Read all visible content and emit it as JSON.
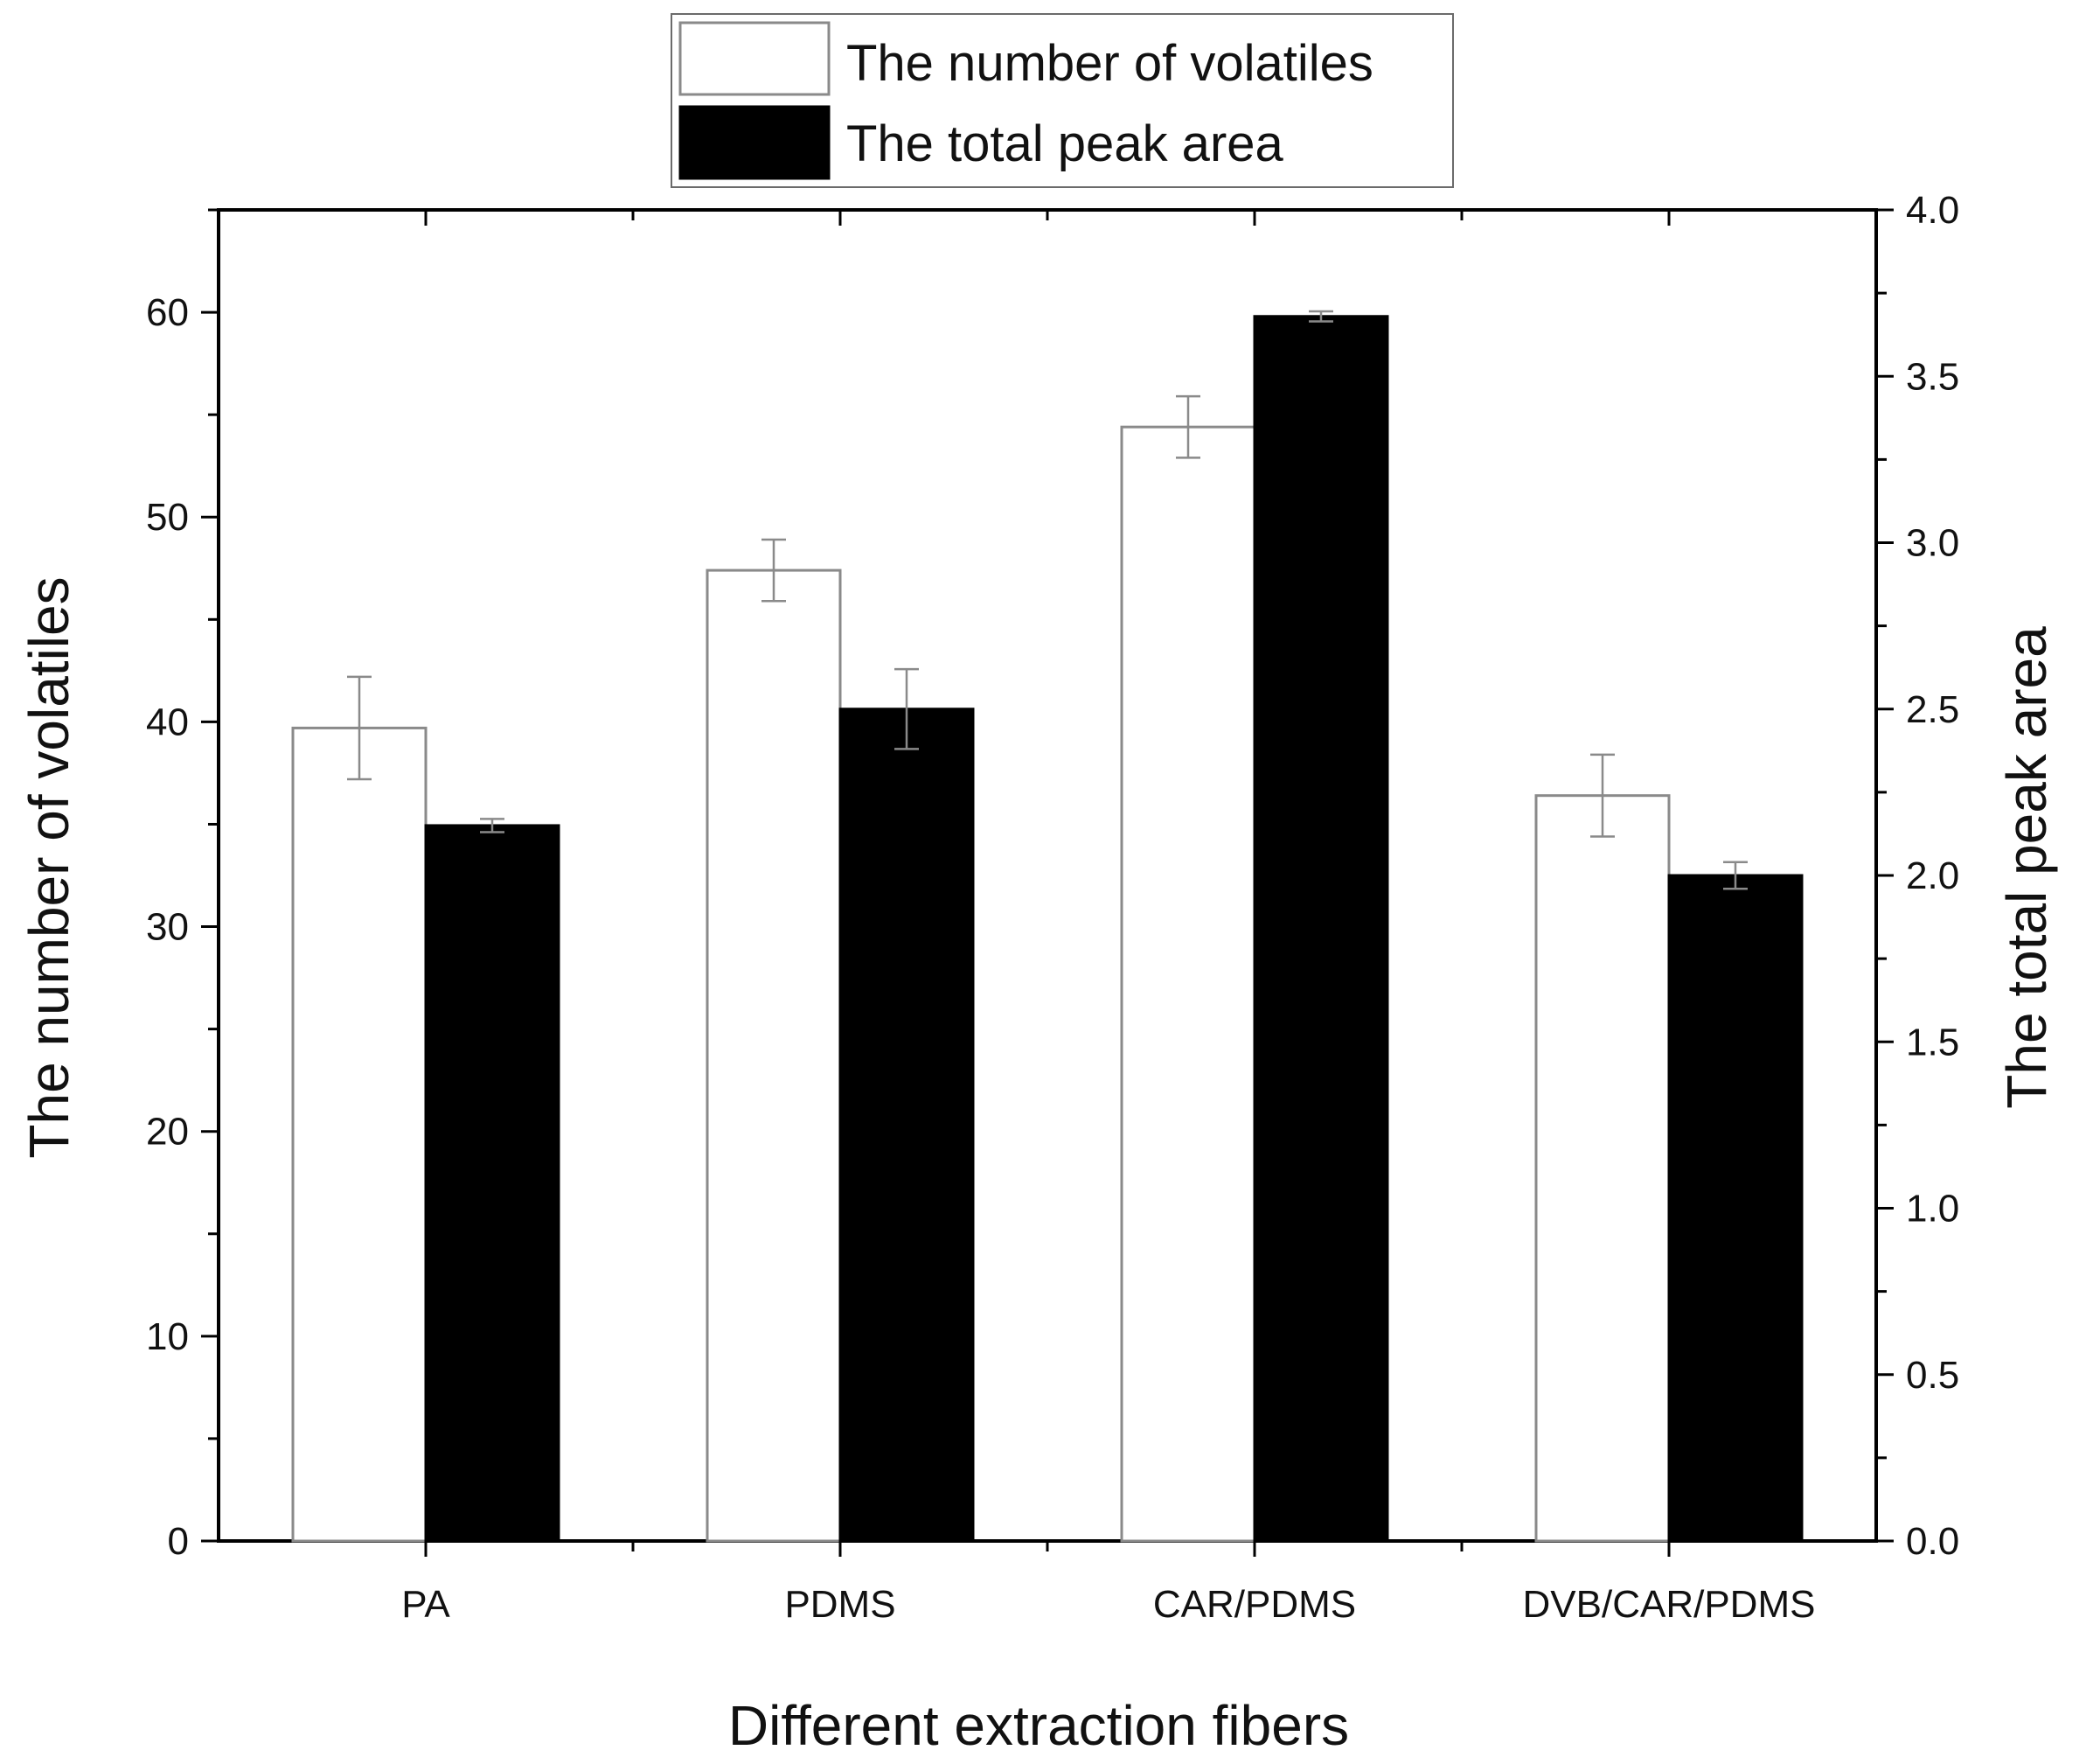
{
  "chart_data": {
    "type": "bar",
    "categories": [
      "PA",
      "PDMS",
      "CAR/PDMS",
      "DVB/CAR/PDMS"
    ],
    "series": [
      {
        "name": "The number of volatiles",
        "axis": "left",
        "fill": "#ffffff",
        "stroke": "#8a8a8a",
        "values": [
          39.7,
          47.4,
          54.4,
          36.4
        ],
        "errors": [
          2.5,
          1.5,
          1.5,
          2.0
        ]
      },
      {
        "name": "The total peak area",
        "axis": "right",
        "fill": "#000000",
        "stroke": "#000000",
        "values": [
          2.15,
          2.5,
          3.68,
          2.0
        ],
        "errors": [
          0.02,
          0.12,
          0.015,
          0.04
        ]
      }
    ],
    "xlabel": "Different extraction fibers",
    "ylabel_left": "The number of volatiles",
    "ylabel_right": "The total peak area",
    "ylim_left": [
      0,
      65
    ],
    "ylim_right": [
      0,
      4.0
    ],
    "yticks_left": [
      "0",
      "10",
      "20",
      "30",
      "40",
      "50",
      "60"
    ],
    "yticks_right": [
      "0.0",
      "0.5",
      "1.0",
      "1.5",
      "2.0",
      "2.5",
      "3.0",
      "3.5",
      "4.0"
    ],
    "legend_position": "top-center",
    "grid": false
  }
}
